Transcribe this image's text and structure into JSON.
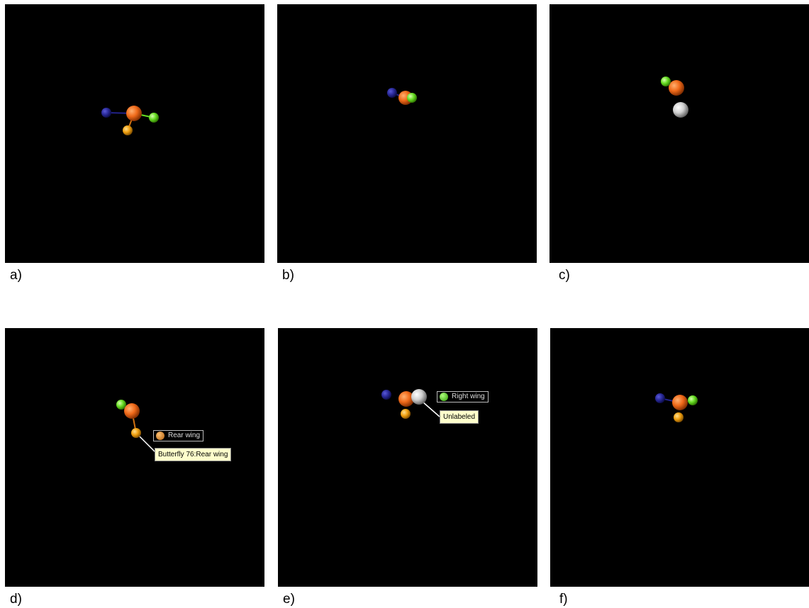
{
  "panels": [
    {
      "caption": "a)"
    },
    {
      "caption": "b)"
    },
    {
      "caption": "c)"
    },
    {
      "caption": "d)",
      "legend": "Rear wing",
      "tooltip": "Butterfly 76:Rear wing"
    },
    {
      "caption": "e)",
      "legend": "Right wing",
      "tooltip": "Unlabeled"
    },
    {
      "caption": "f)"
    }
  ]
}
